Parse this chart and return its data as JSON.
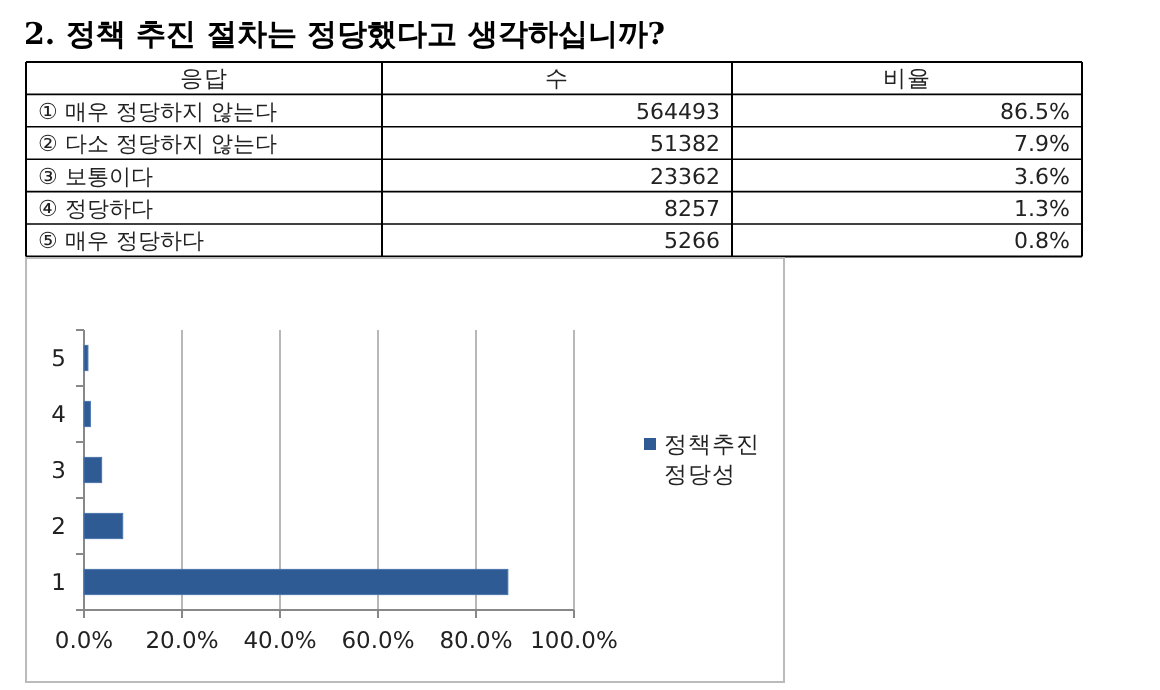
{
  "chart_data": {
    "type": "bar",
    "orientation": "horizontal",
    "title": "2. 정책 추진 절차는 정당했다고 생각하십니까?",
    "categories": [
      "5",
      "4",
      "3",
      "2",
      "1"
    ],
    "series": [
      {
        "name": "정책추진 정당성",
        "color": "#2e5b94",
        "values": [
          0.8,
          1.3,
          3.6,
          7.9,
          86.5
        ]
      }
    ],
    "xlim": [
      0,
      100
    ],
    "xticks": [
      {
        "value": 0,
        "label": "0.0%"
      },
      {
        "value": 20,
        "label": "20.0%"
      },
      {
        "value": 40,
        "label": "40.0%"
      },
      {
        "value": 60,
        "label": "60.0%"
      },
      {
        "value": 80,
        "label": "80.0%"
      },
      {
        "value": 100,
        "label": "100.0%"
      }
    ],
    "grid": "x",
    "legend": "right",
    "annotations": [
      "응답",
      "수",
      "비율",
      "① 매우 정당하지 않는다",
      "564493",
      "86.5%",
      "② 다소 정당하지 않는다",
      "51382",
      "7.9%",
      "③ 보통이다",
      "23362",
      "3.6%",
      "④ 정당하다",
      "8257",
      "1.3%",
      "⑤ 매우 정당하다",
      "5266",
      "0.8%"
    ]
  }
}
